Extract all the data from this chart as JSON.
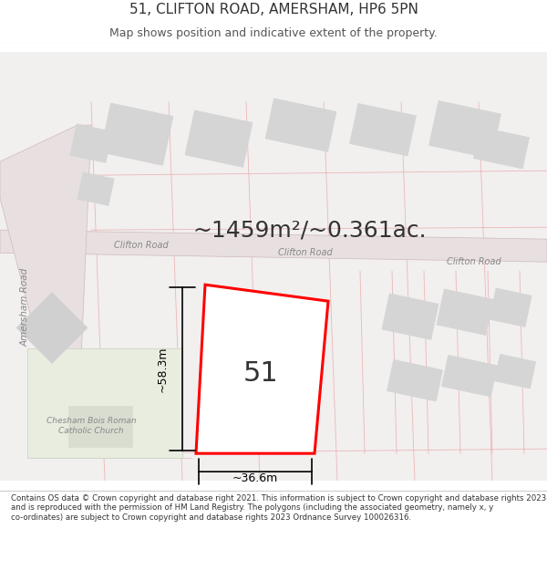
{
  "title_line1": "51, CLIFTON ROAD, AMERSHAM, HP6 5PN",
  "title_line2": "Map shows position and indicative extent of the property.",
  "area_text": "~1459m²/~0.361ac.",
  "label_51": "51",
  "dim_height": "~58.3m",
  "dim_width": "~36.6m",
  "road_label1": "Clifton Road",
  "road_label2": "Clifton Road",
  "road_label3": "Clifton Road",
  "road_label_left": "Amersham Road",
  "church_label": "Chesham Bois Roman\nCatholic Church",
  "footer_text": "Contains OS data © Crown copyright and database right 2021. This information is subject to Crown copyright and database rights 2023 and is reproduced with the permission of HM Land Registry. The polygons (including the associated geometry, namely x, y co-ordinates) are subject to Crown copyright and database rights 2023 Ordnance Survey 100026316.",
  "bg_color": "#ffffff",
  "map_bg": "#f5f5f5",
  "road_color": "#f0d0d0",
  "road_fill": "#e8e8e8",
  "building_fill": "#d8d8d8",
  "building_edge": "#cccccc",
  "target_fill": "#ffffff",
  "target_edge": "#ff0000",
  "target_edge_width": 2.0,
  "church_fill": "#e8ede8",
  "dim_color": "#000000",
  "text_color": "#333333",
  "light_road_color": "#e8c8c8"
}
